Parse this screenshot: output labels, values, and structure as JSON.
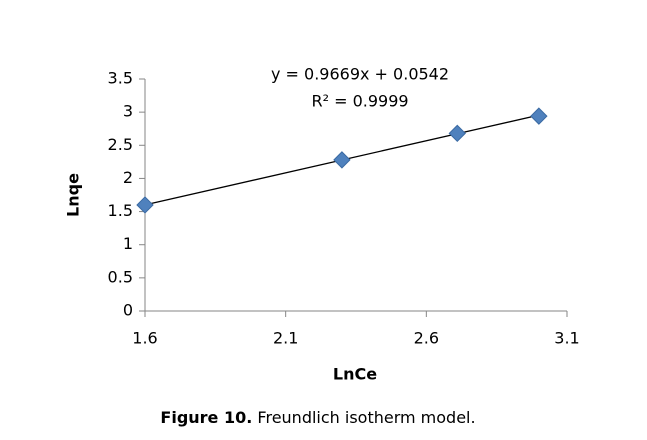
{
  "chart_data": {
    "type": "scatter",
    "x_label": "LnCe",
    "y_label": "Lnqe",
    "x": [
      1.6,
      2.3,
      2.71,
      3.0
    ],
    "values": [
      1.6,
      2.28,
      2.68,
      2.94
    ],
    "color": "#4f81bd",
    "xlim": [
      1.6,
      3.1
    ],
    "xticks": [
      1.6,
      2.1,
      2.6,
      3.1
    ],
    "ylim": [
      0,
      3.5
    ],
    "yticks": [
      0,
      0.5,
      1,
      1.5,
      2,
      2.5,
      3,
      3.5
    ],
    "trendline": {
      "slope": 0.9669,
      "intercept": 0.0542,
      "equation": "y = 0.9669x + 0.0542",
      "r2_label": "R² = 0.9999"
    }
  },
  "caption": {
    "label": "Figure 10.",
    "text": "Freundlich isotherm model."
  }
}
